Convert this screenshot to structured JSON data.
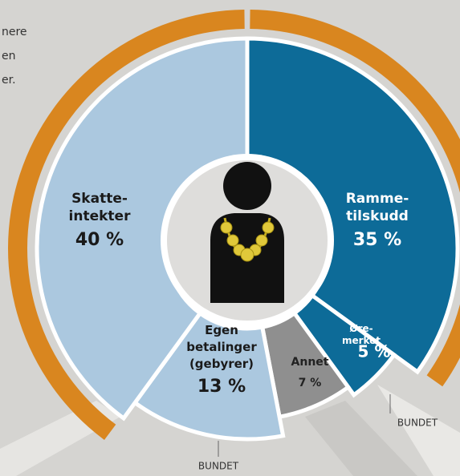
{
  "chart_data": {
    "type": "donut",
    "text_fragments": [
      "nere",
      "en",
      "er."
    ],
    "categories": [
      "Rammetilskudd",
      "Øremerket",
      "Annet",
      "Egen betalinger (gebyrer)",
      "Skatteintekter"
    ],
    "label_lines": [
      [
        "Ramme-",
        "tilskudd"
      ],
      [
        "Øre-",
        "merket"
      ],
      [
        "Annet"
      ],
      [
        "Egen",
        "betalinger",
        "(gebyrer)"
      ],
      [
        "Skatte-",
        "intekter"
      ]
    ],
    "values": [
      35,
      5,
      7,
      13,
      40
    ],
    "value_labels": [
      "35 %",
      "5 %",
      "7 %",
      "13 %",
      "40 %"
    ],
    "colors": [
      "#0d6b98",
      "#0d6b98",
      "#8f8f8f",
      "#abc8df",
      "#abc8df"
    ],
    "ring_color": "#d9861f",
    "annotations": [
      "BUNDET",
      "BUNDET"
    ]
  }
}
